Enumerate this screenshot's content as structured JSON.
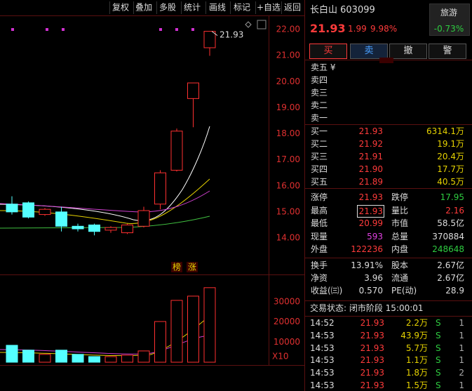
{
  "toolbar": [
    "复权",
    "叠加",
    "多股",
    "统计",
    "画线",
    "标记",
    "+自选",
    "返回"
  ],
  "chart": {
    "price_ticks": [
      {
        "value": 22,
        "label": "22.00"
      },
      {
        "value": 21,
        "label": "21.00"
      },
      {
        "value": 20,
        "label": "20.00"
      },
      {
        "value": 19,
        "label": "19.00"
      },
      {
        "value": 18,
        "label": "18.00"
      },
      {
        "value": 17,
        "label": "17.00"
      },
      {
        "value": 16,
        "label": "16.00"
      },
      {
        "value": 15,
        "label": "15.00"
      },
      {
        "value": 14,
        "label": "14.00"
      }
    ],
    "annotation": "21.93",
    "badges": [
      "榜",
      "涨"
    ],
    "volume_ticks": [
      30000,
      20000,
      10000
    ],
    "volume_scale": "X10",
    "candles": [
      {
        "open": 15.3,
        "close": 15.0,
        "high": 15.6,
        "low": 14.9
      },
      {
        "open": 15.35,
        "close": 14.8,
        "high": 15.4,
        "low": 14.75
      },
      {
        "open": 14.9,
        "close": 15.1,
        "high": 15.15,
        "low": 14.85
      },
      {
        "open": 15.0,
        "close": 14.45,
        "high": 15.2,
        "low": 14.25
      },
      {
        "open": 14.45,
        "close": 14.35,
        "high": 14.55,
        "low": 14.25
      },
      {
        "open": 14.5,
        "close": 14.25,
        "high": 14.55,
        "low": 14.1
      },
      {
        "open": 14.3,
        "close": 14.4,
        "high": 14.45,
        "low": 14.2
      },
      {
        "open": 14.2,
        "close": 14.5,
        "high": 14.55,
        "low": 14.15
      },
      {
        "open": 14.45,
        "close": 15.05,
        "high": 15.2,
        "low": 14.4
      },
      {
        "open": 15.3,
        "close": 16.5,
        "high": 16.6,
        "low": 15.1
      },
      {
        "open": 16.6,
        "close": 18.1,
        "high": 18.2,
        "low": 16.55
      },
      {
        "open": 19.35,
        "close": 19.95,
        "high": 19.95,
        "low": 18.25
      },
      {
        "open": 21.3,
        "close": 21.93,
        "high": 21.93,
        "low": 20.99
      }
    ],
    "volumes": [
      8400,
      6000,
      3900,
      6000,
      3900,
      2800,
      2800,
      3500,
      5600,
      20200,
      30700,
      32800,
      37000
    ]
  },
  "quote": {
    "name": "长白山 603099",
    "price": "21.93",
    "change": "1.99",
    "change_pct": "9.98%",
    "sector": "旅游",
    "sector_change": "-0.73%",
    "buttons": [
      "买",
      "卖",
      "撤",
      "警"
    ],
    "sell_rows": [
      "卖五 ¥",
      "卖四",
      "卖三",
      "卖二",
      "卖一"
    ],
    "buy_rows": [
      [
        "买一",
        "21.93",
        "6314.1万"
      ],
      [
        "买二",
        "21.92",
        "19.1万"
      ],
      [
        "买三",
        "21.91",
        "20.4万"
      ],
      [
        "买四",
        "21.90",
        "17.7万"
      ],
      [
        "买五",
        "21.89",
        "40.5万"
      ]
    ],
    "stats": [
      [
        "涨停",
        "21.93",
        "跌停",
        "17.95"
      ],
      [
        "最高",
        "21.93",
        "量比",
        "2.16"
      ],
      [
        "最低",
        "20.99",
        "市值",
        "58.5亿"
      ],
      [
        "现量",
        "593",
        "总量",
        "370884"
      ],
      [
        "外盘",
        "122236",
        "内盘",
        "248648"
      ]
    ],
    "finance": [
      [
        "换手",
        "13.91%",
        "股本",
        "2.67亿"
      ],
      [
        "净资",
        "3.96",
        "流通",
        "2.67亿"
      ],
      [
        "收益(㈢)",
        "0.570",
        "PE(动)",
        "28.9"
      ]
    ],
    "status": "交易状态: 闭市阶段 15:00:01",
    "trades": [
      [
        "14:52",
        "21.93",
        "2.2万",
        "S",
        "1"
      ],
      [
        "14:53",
        "21.93",
        "43.9万",
        "S",
        "1"
      ],
      [
        "14:53",
        "21.93",
        "5.7万",
        "S",
        "1"
      ],
      [
        "14:53",
        "21.93",
        "1.1万",
        "S",
        "1"
      ],
      [
        "14:53",
        "21.93",
        "1.8万",
        "S",
        "2"
      ],
      [
        "14:53",
        "21.93",
        "1.5万",
        "S",
        "1"
      ]
    ]
  }
}
